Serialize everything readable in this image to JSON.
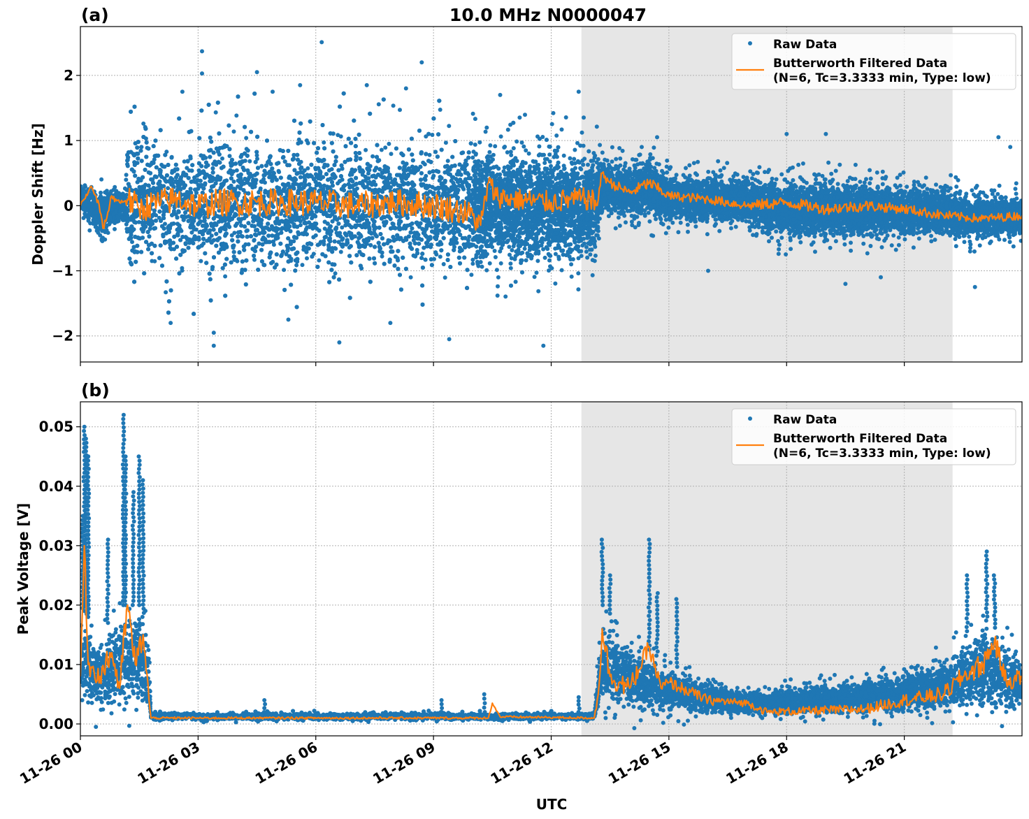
{
  "chart_data": [
    {
      "type": "scatter",
      "panel_label": "(a)",
      "title": "10.0 MHz N0000047",
      "xlabel": "",
      "ylabel": "Doppler Shift [Hz]",
      "xlim_hours": [
        0,
        24
      ],
      "ylim": [
        -2.4,
        2.75
      ],
      "yticks": [
        2,
        1,
        0,
        -1,
        -2
      ],
      "ytick_labels": [
        "2",
        "1",
        "0",
        "−1",
        "−2"
      ],
      "grid": true,
      "legend_position": "top-right",
      "shaded_interval_hours": [
        12.77,
        22.23
      ],
      "series": [
        {
          "name": "Raw Data",
          "kind": "scatter",
          "color": "#1f77b4",
          "band_hour_low_high": [
            [
              0,
              -0.1,
              0.35
            ],
            [
              0.5,
              -0.6,
              0.3
            ],
            [
              1,
              -0.3,
              0.3
            ],
            [
              1.15,
              -0.3,
              0.3
            ],
            [
              1.2,
              -1.3,
              1.4
            ],
            [
              10,
              -1.3,
              1.3
            ],
            [
              10.3,
              -1.1,
              1.1
            ],
            [
              13.1,
              -1.1,
              1.1
            ],
            [
              13.3,
              -0.2,
              0.8
            ],
            [
              14,
              -0.3,
              0.7
            ],
            [
              14.5,
              -0.3,
              0.9
            ],
            [
              15,
              -0.35,
              0.55
            ],
            [
              17,
              -0.35,
              0.55
            ],
            [
              17.5,
              -0.6,
              0.5
            ],
            [
              20,
              -0.6,
              0.5
            ],
            [
              20.5,
              -0.55,
              0.4
            ],
            [
              22,
              -0.55,
              0.4
            ],
            [
              22.5,
              -0.6,
              0.25
            ],
            [
              24,
              -0.55,
              0.25
            ]
          ],
          "outliers": [
            [
              3.1,
              2.37
            ],
            [
              3.1,
              2.03
            ],
            [
              4.5,
              2.05
            ],
            [
              6.15,
              2.51
            ],
            [
              8.7,
              2.2
            ],
            [
              3.4,
              -1.95
            ],
            [
              3.4,
              -2.15
            ],
            [
              6.6,
              -2.1
            ],
            [
              9.4,
              -2.05
            ],
            [
              11.8,
              -2.15
            ],
            [
              7.3,
              1.85
            ],
            [
              4.9,
              1.75
            ],
            [
              10.7,
              1.7
            ],
            [
              12.7,
              1.75
            ],
            [
              14.7,
              1.05
            ],
            [
              18,
              1.1
            ],
            [
              19,
              1.1
            ],
            [
              23.4,
              1.05
            ],
            [
              23.7,
              0.9
            ],
            [
              19.5,
              -1.2
            ],
            [
              20.4,
              -1.1
            ],
            [
              22.8,
              -1.25
            ],
            [
              16,
              -1.0
            ],
            [
              2.6,
              1.75
            ],
            [
              5.6,
              1.85
            ],
            [
              8.3,
              1.8
            ],
            [
              2.3,
              -1.8
            ],
            [
              5.3,
              -1.75
            ],
            [
              7.9,
              -1.8
            ]
          ]
        },
        {
          "name": "Butterworth Filtered Data\n(N=6, Tc=3.3333 min, Type: low)",
          "kind": "line",
          "color": "#ff7f0e",
          "points_hour_value": [
            [
              0,
              0
            ],
            [
              0.1,
              0.1
            ],
            [
              0.25,
              0.28
            ],
            [
              0.4,
              0.15
            ],
            [
              0.5,
              -0.1
            ],
            [
              0.6,
              -0.35
            ],
            [
              0.7,
              -0.1
            ],
            [
              0.8,
              0.15
            ],
            [
              1,
              0.05
            ],
            [
              1.2,
              0.1
            ],
            [
              1.5,
              -0.05
            ],
            [
              2,
              0.05
            ],
            [
              2.5,
              0.1
            ],
            [
              3,
              0
            ],
            [
              3.5,
              0.05
            ],
            [
              4,
              0.05
            ],
            [
              5,
              0.05
            ],
            [
              6,
              0.05
            ],
            [
              7,
              0
            ],
            [
              8,
              0.05
            ],
            [
              9,
              0
            ],
            [
              9.5,
              -0.05
            ],
            [
              10,
              -0.15
            ],
            [
              10.2,
              -0.3
            ],
            [
              10.4,
              0.35
            ],
            [
              10.6,
              0.15
            ],
            [
              11,
              0.1
            ],
            [
              12,
              0.05
            ],
            [
              12.5,
              0.1
            ],
            [
              13,
              0.1
            ],
            [
              13.15,
              0
            ],
            [
              13.3,
              0.5
            ],
            [
              13.5,
              0.35
            ],
            [
              14,
              0.2
            ],
            [
              14.5,
              0.35
            ],
            [
              15,
              0.15
            ],
            [
              16,
              0.1
            ],
            [
              17,
              0
            ],
            [
              18,
              0.05
            ],
            [
              19,
              -0.05
            ],
            [
              20,
              0
            ],
            [
              21,
              -0.05
            ],
            [
              22,
              -0.15
            ],
            [
              23,
              -0.2
            ],
            [
              24,
              -0.15
            ]
          ]
        }
      ]
    },
    {
      "type": "scatter",
      "panel_label": "(b)",
      "xlabel": "UTC",
      "ylabel": "Peak Voltage [V]",
      "xlim_hours": [
        0,
        24
      ],
      "ylim": [
        -0.002,
        0.0542
      ],
      "yticks": [
        0.05,
        0.04,
        0.03,
        0.02,
        0.01,
        0.0
      ],
      "ytick_labels": [
        "0.05",
        "0.04",
        "0.03",
        "0.02",
        "0.01",
        "0.00"
      ],
      "xtick_labels": [
        "11-26 00",
        "11-26 03",
        "11-26 06",
        "11-26 09",
        "11-26 12",
        "11-26 15",
        "11-26 18",
        "11-26 21"
      ],
      "xtick_hours": [
        0,
        3,
        6,
        9,
        12,
        15,
        18,
        21
      ],
      "grid": true,
      "legend_position": "top-right",
      "shaded_interval_hours": [
        12.77,
        22.23
      ],
      "series": [
        {
          "name": "Raw Data",
          "kind": "scatter",
          "color": "#1f77b4",
          "band_hour_low_high": [
            [
              0,
              0.002,
              0.02
            ],
            [
              0.5,
              0.001,
              0.015
            ],
            [
              1,
              0.001,
              0.02
            ],
            [
              1.5,
              0.002,
              0.02
            ],
            [
              1.75,
              0.002,
              0.015
            ],
            [
              1.8,
              0.0005,
              0.002
            ],
            [
              13.1,
              0.0005,
              0.002
            ],
            [
              13.3,
              0.001,
              0.02
            ],
            [
              14,
              0.001,
              0.015
            ],
            [
              15,
              0.001,
              0.01
            ],
            [
              17,
              0.001,
              0.006
            ],
            [
              20,
              0.001,
              0.008
            ],
            [
              22,
              0.001,
              0.012
            ],
            [
              23,
              0.001,
              0.018
            ],
            [
              24,
              0.001,
              0.012
            ]
          ],
          "outliers": [
            [
              0.1,
              0.05
            ],
            [
              0.15,
              0.048
            ],
            [
              0.2,
              0.045
            ],
            [
              0.05,
              0.035
            ],
            [
              1.1,
              0.052
            ],
            [
              1.15,
              0.045
            ],
            [
              1.5,
              0.045
            ],
            [
              1.6,
              0.041
            ],
            [
              0.7,
              0.031
            ],
            [
              1.35,
              0.039
            ],
            [
              13.3,
              0.031
            ],
            [
              13.5,
              0.025
            ],
            [
              14.5,
              0.031
            ],
            [
              14.7,
              0.022
            ],
            [
              15.2,
              0.021
            ],
            [
              22.6,
              0.025
            ],
            [
              23.1,
              0.029
            ],
            [
              23.3,
              0.025
            ],
            [
              10.3,
              0.005
            ],
            [
              9.2,
              0.004
            ],
            [
              4.7,
              0.004
            ],
            [
              12.7,
              0.0045
            ]
          ]
        },
        {
          "name": "Butterworth Filtered Data\n(N=6, Tc=3.3333 min, Type: low)",
          "kind": "line",
          "color": "#ff7f0e",
          "points_hour_value": [
            [
              0,
              0.008
            ],
            [
              0.1,
              0.03
            ],
            [
              0.2,
              0.01
            ],
            [
              0.5,
              0.008
            ],
            [
              0.8,
              0.012
            ],
            [
              1,
              0.006
            ],
            [
              1.2,
              0.02
            ],
            [
              1.4,
              0.01
            ],
            [
              1.6,
              0.015
            ],
            [
              1.75,
              0.004
            ],
            [
              1.8,
              0.001
            ],
            [
              5,
              0.001
            ],
            [
              10.4,
              0.001
            ],
            [
              10.5,
              0.0035
            ],
            [
              10.7,
              0.0012
            ],
            [
              13.1,
              0.001
            ],
            [
              13.2,
              0.005
            ],
            [
              13.3,
              0.016
            ],
            [
              13.5,
              0.008
            ],
            [
              14,
              0.006
            ],
            [
              14.5,
              0.013
            ],
            [
              14.8,
              0.006
            ],
            [
              15,
              0.007
            ],
            [
              16,
              0.004
            ],
            [
              17,
              0.0035
            ],
            [
              17.5,
              0.002
            ],
            [
              20,
              0.0025
            ],
            [
              21,
              0.004
            ],
            [
              22,
              0.005
            ],
            [
              22.5,
              0.008
            ],
            [
              23,
              0.01
            ],
            [
              23.3,
              0.014
            ],
            [
              23.6,
              0.007
            ],
            [
              24,
              0.008
            ]
          ]
        }
      ]
    }
  ],
  "legend": {
    "raw": "Raw Data",
    "filtered_line1": "Butterworth Filtered Data",
    "filtered_line2": "(N=6, Tc=3.3333 min, Type: low)"
  }
}
